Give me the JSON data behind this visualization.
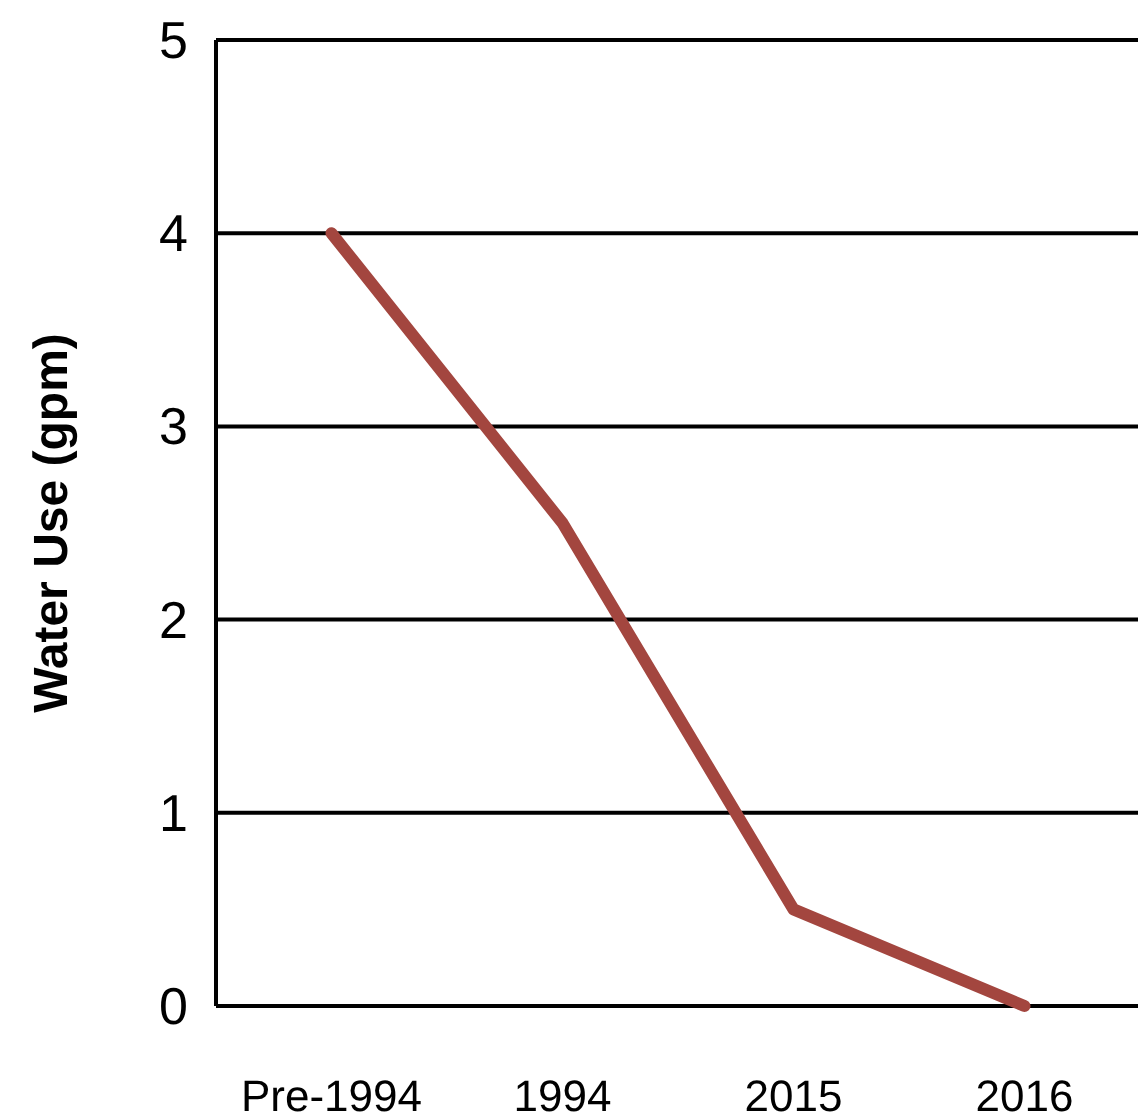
{
  "chart_data": {
    "type": "line",
    "ylabel": "Water Use (gpm)",
    "categories": [
      "Pre-1994",
      "1994",
      "2015",
      "2016"
    ],
    "series": [
      {
        "color": "#a3463f",
        "values": [
          4,
          2.5,
          0.5,
          0
        ]
      }
    ],
    "ylim": [
      0,
      5
    ],
    "yticks": [
      0,
      1,
      2,
      3,
      4,
      5
    ],
    "grid": "y",
    "marker": "none",
    "line_style": "solid"
  }
}
